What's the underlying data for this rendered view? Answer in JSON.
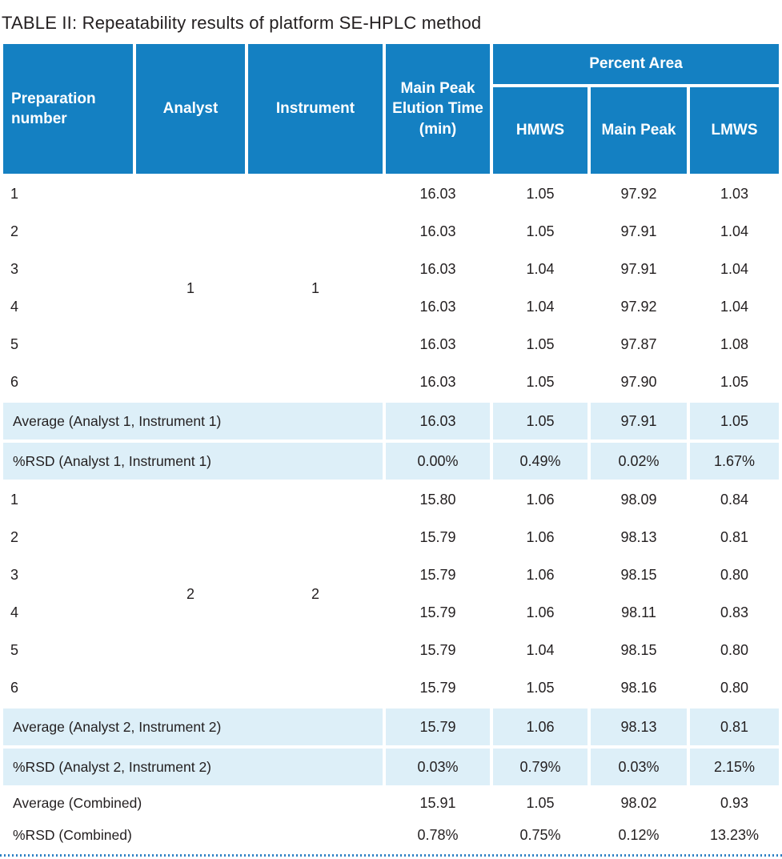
{
  "title": "TABLE II: Repeatability results of platform SE-HPLC method",
  "colors": {
    "header_blue": "#1480c2",
    "highlight_light_blue": "#ddeff8",
    "text_dark": "#231f20",
    "dotted_divider_blue": "#2e81c4"
  },
  "table": {
    "headers": {
      "prep": "Preparation number",
      "analyst": "Analyst",
      "instrument": "Instrument",
      "elution": "Main Peak Elution Time (min)",
      "percent_area": "Percent Area",
      "hmws": "HMWS",
      "main_peak": "Main Peak",
      "lmws": "LMWS"
    },
    "groups": [
      {
        "analyst": "1",
        "instrument": "1",
        "rows": [
          {
            "prep": "1",
            "elution": "16.03",
            "hmws": "1.05",
            "main_peak": "97.92",
            "lmws": "1.03"
          },
          {
            "prep": "2",
            "elution": "16.03",
            "hmws": "1.05",
            "main_peak": "97.91",
            "lmws": "1.04"
          },
          {
            "prep": "3",
            "elution": "16.03",
            "hmws": "1.04",
            "main_peak": "97.91",
            "lmws": "1.04"
          },
          {
            "prep": "4",
            "elution": "16.03",
            "hmws": "1.04",
            "main_peak": "97.92",
            "lmws": "1.04"
          },
          {
            "prep": "5",
            "elution": "16.03",
            "hmws": "1.05",
            "main_peak": "97.87",
            "lmws": "1.08"
          },
          {
            "prep": "6",
            "elution": "16.03",
            "hmws": "1.05",
            "main_peak": "97.90",
            "lmws": "1.05"
          }
        ],
        "average": {
          "label": "Average (Analyst 1, Instrument 1)",
          "elution": "16.03",
          "hmws": "1.05",
          "main_peak": "97.91",
          "lmws": "1.05"
        },
        "rsd": {
          "label": "%RSD (Analyst 1, Instrument 1)",
          "elution": "0.00%",
          "hmws": "0.49%",
          "main_peak": "0.02%",
          "lmws": "1.67%"
        }
      },
      {
        "analyst": "2",
        "instrument": "2",
        "rows": [
          {
            "prep": "1",
            "elution": "15.80",
            "hmws": "1.06",
            "main_peak": "98.09",
            "lmws": "0.84"
          },
          {
            "prep": "2",
            "elution": "15.79",
            "hmws": "1.06",
            "main_peak": "98.13",
            "lmws": "0.81"
          },
          {
            "prep": "3",
            "elution": "15.79",
            "hmws": "1.06",
            "main_peak": "98.15",
            "lmws": "0.80"
          },
          {
            "prep": "4",
            "elution": "15.79",
            "hmws": "1.06",
            "main_peak": "98.11",
            "lmws": "0.83"
          },
          {
            "prep": "5",
            "elution": "15.79",
            "hmws": "1.04",
            "main_peak": "98.15",
            "lmws": "0.80"
          },
          {
            "prep": "6",
            "elution": "15.79",
            "hmws": "1.05",
            "main_peak": "98.16",
            "lmws": "0.80"
          }
        ],
        "average": {
          "label": "Average (Analyst 2, Instrument 2)",
          "elution": "15.79",
          "hmws": "1.06",
          "main_peak": "98.13",
          "lmws": "0.81"
        },
        "rsd": {
          "label": "%RSD (Analyst 2, Instrument 2)",
          "elution": "0.03%",
          "hmws": "0.79%",
          "main_peak": "0.03%",
          "lmws": "2.15%"
        }
      }
    ],
    "combined": [
      {
        "label": "Average (Combined)",
        "elution": "15.91",
        "hmws": "1.05",
        "main_peak": "98.02",
        "lmws": "0.93"
      },
      {
        "label": "%RSD (Combined)",
        "elution": "0.78%",
        "hmws": "0.75%",
        "main_peak": "0.12%",
        "lmws": "13.23%"
      }
    ]
  }
}
